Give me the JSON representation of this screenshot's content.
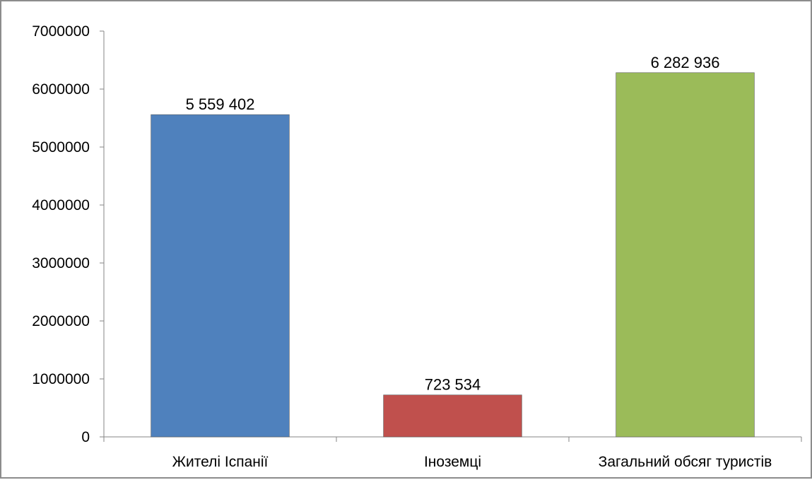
{
  "chart_data": {
    "type": "bar",
    "categories": [
      "Жителі Іспанії",
      "Іноземці",
      "Загальний обсяг туристів"
    ],
    "values": [
      5559402,
      723534,
      6282936
    ],
    "data_labels": [
      "5 559 402",
      "723 534",
      "6 282 936"
    ],
    "colors": [
      "#4f81bd",
      "#c0504d",
      "#9bbb59"
    ],
    "ylim": [
      0,
      7000000
    ],
    "yticks": [
      0,
      1000000,
      2000000,
      3000000,
      4000000,
      5000000,
      6000000,
      7000000
    ],
    "ytick_labels": [
      "0",
      "1000000",
      "2000000",
      "3000000",
      "4000000",
      "5000000",
      "6000000",
      "7000000"
    ],
    "grid": false,
    "legend": "none",
    "title": "",
    "xlabel": "",
    "ylabel": ""
  }
}
